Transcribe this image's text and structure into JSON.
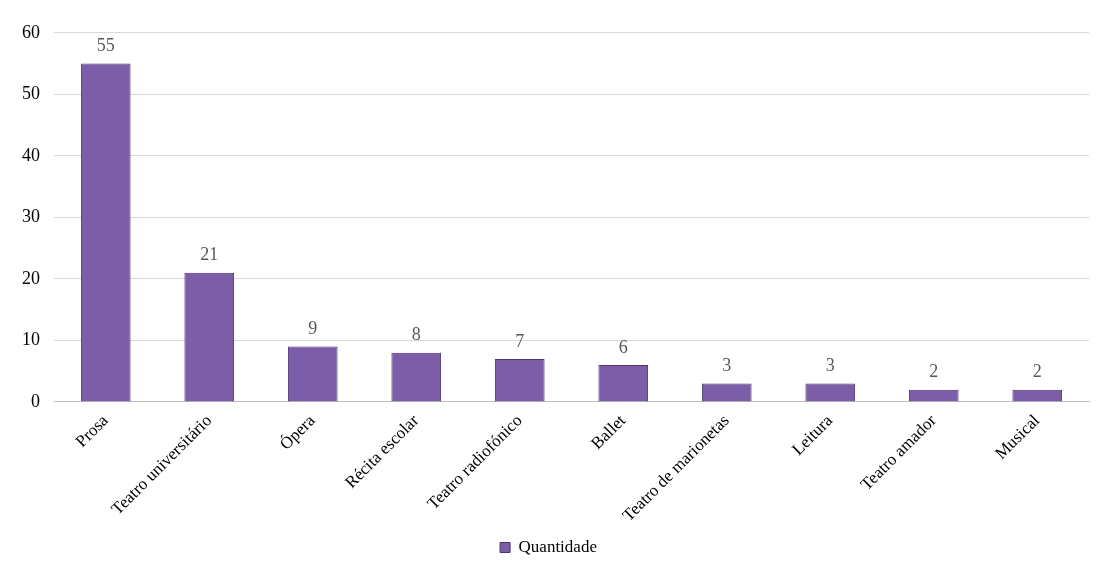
{
  "chart_data": {
    "type": "bar",
    "categories": [
      "Prosa",
      "Teatro universitário",
      "Ópera",
      "Récita escolar",
      "Teatro radiofónico",
      "Ballet",
      "Teatro de marionetas",
      "Leitura",
      "Teatro amador",
      "Musical"
    ],
    "series": [
      {
        "name": "Quantidade",
        "color": "#7b5ea7",
        "values": [
          55,
          21,
          9,
          8,
          7,
          6,
          3,
          3,
          2,
          2
        ]
      }
    ],
    "ylim": [
      0,
      60
    ],
    "yticks": [
      0,
      10,
      20,
      30,
      40,
      50,
      60
    ],
    "grid": "y",
    "legend": "bottom",
    "data_labels": true
  }
}
